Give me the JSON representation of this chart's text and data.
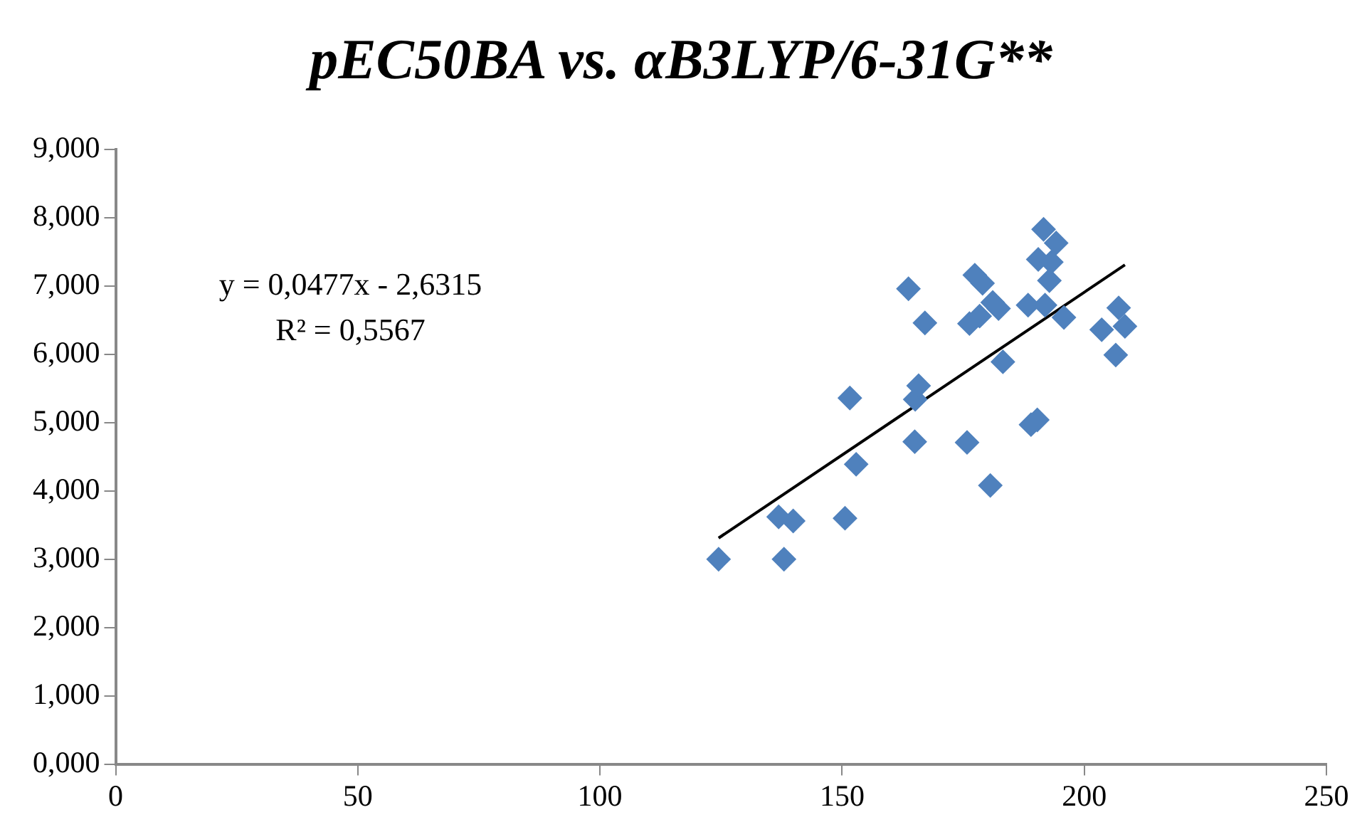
{
  "chart_data": {
    "type": "scatter",
    "title": "pEC50BA vs. αB3LYP/6-31G**",
    "xlim": [
      0,
      250
    ],
    "xticks": [
      0,
      50,
      100,
      150,
      200,
      250
    ],
    "ylim": [
      0,
      9
    ],
    "yticks": [
      {
        "value": 0,
        "label": "0,000"
      },
      {
        "value": 1,
        "label": "1,000"
      },
      {
        "value": 2,
        "label": "2,000"
      },
      {
        "value": 3,
        "label": "3,000"
      },
      {
        "value": 4,
        "label": "4,000"
      },
      {
        "value": 5,
        "label": "5,000"
      },
      {
        "value": 6,
        "label": "6,000"
      },
      {
        "value": 7,
        "label": "7,000"
      },
      {
        "value": 8,
        "label": "8,000"
      },
      {
        "value": 9,
        "label": "9,000"
      }
    ],
    "grid": false,
    "legend": false,
    "annotations": [
      "y = 0,0477x - 2,6315",
      "R² = 0,5567"
    ],
    "series": [
      {
        "type": "scatter",
        "marker": "diamond",
        "color": "#4f81bd",
        "x": [
          124.5,
          138.0,
          136.9,
          139.9,
          150.6,
          152.9,
          151.6,
          165.0,
          165.1,
          165.8,
          163.7,
          167.1,
          175.8,
          180.6,
          183.2,
          190.3,
          189.0,
          176.3,
          177.4,
          179.0,
          181.1,
          182.3,
          178.4,
          188.4,
          191.6,
          194.2,
          190.5,
          193.2,
          192.8,
          191.9,
          195.8,
          207.1,
          203.6,
          208.4,
          206.5
        ],
        "values": [
          3.0,
          3.0,
          3.62,
          3.56,
          3.6,
          4.39,
          5.36,
          4.72,
          5.34,
          5.54,
          6.96,
          6.46,
          4.71,
          4.08,
          5.89,
          5.04,
          4.97,
          6.45,
          7.16,
          7.04,
          6.76,
          6.67,
          6.56,
          6.72,
          7.83,
          7.63,
          7.39,
          7.35,
          7.08,
          6.72,
          6.54,
          6.68,
          6.36,
          6.41,
          5.99
        ]
      },
      {
        "type": "line",
        "marker": "none",
        "color": "#000000",
        "x": [
          124.5,
          208.4
        ],
        "values": [
          3.31,
          7.31
        ]
      }
    ]
  }
}
